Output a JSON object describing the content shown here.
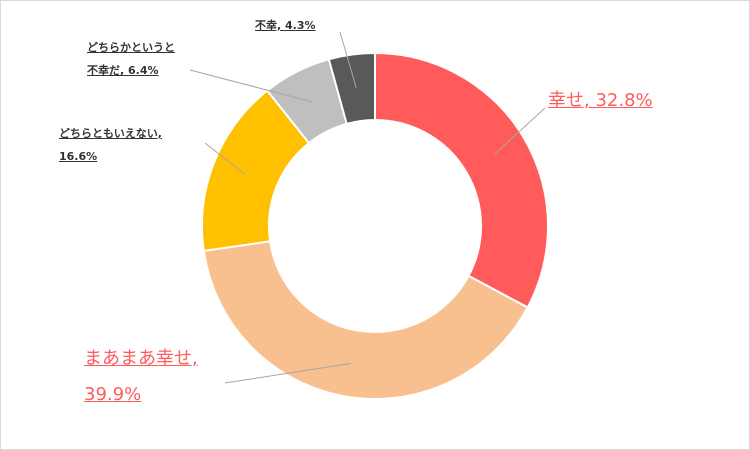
{
  "chart_data": {
    "type": "pie",
    "style": "donut",
    "start": "top",
    "direction": "clockwise",
    "slices": [
      {
        "label": "幸せ",
        "value": 32.8,
        "text_line1": "幸せ, 32.8%",
        "text_line2": "",
        "color": "#ff5b5b"
      },
      {
        "label": "まあまあ幸せ",
        "value": 39.9,
        "text_line1": "まあまあ幸せ,",
        "text_line2": "39.9%",
        "color": "#f8c08f"
      },
      {
        "label": "どちらともいえない",
        "value": 16.6,
        "text_line1": "どちらともいえない,",
        "text_line2": "16.6%",
        "color": "#ffc000"
      },
      {
        "label": "どちらかというと不幸だ",
        "value": 6.4,
        "text_line1": "どちらかというと",
        "text_line2": "不幸だ, 6.4%",
        "color": "#bfbfbf"
      },
      {
        "label": "不幸",
        "value": 4.3,
        "text_line1": "不幸, 4.3%",
        "text_line2": "",
        "color": "#595959"
      }
    ]
  }
}
